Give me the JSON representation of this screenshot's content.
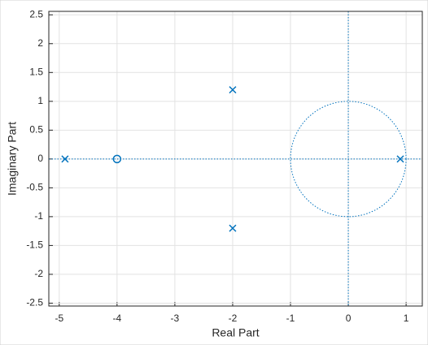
{
  "chart_data": {
    "type": "pole-zero",
    "x_label": "Real Part",
    "y_label": "Imaginary Part",
    "xlim": [
      -5.18,
      1.28
    ],
    "ylim": [
      -2.55,
      2.56
    ],
    "xticks": [
      -5,
      -4,
      -3,
      -2,
      -1,
      0,
      1
    ],
    "yticks": [
      -2.5,
      -2,
      -1.5,
      -1,
      -0.5,
      0,
      0.5,
      1,
      1.5,
      2,
      2.5
    ],
    "grid": true,
    "unit_circle": true,
    "series": [
      {
        "marker": "x",
        "color": "#0072bd",
        "x": [
          -4.9,
          -2,
          -2,
          0.9
        ],
        "values": [
          0,
          1.2,
          -1.2,
          0
        ]
      },
      {
        "marker": "o",
        "color": "#0072bd",
        "x": [
          -4
        ],
        "values": [
          0
        ]
      }
    ]
  }
}
